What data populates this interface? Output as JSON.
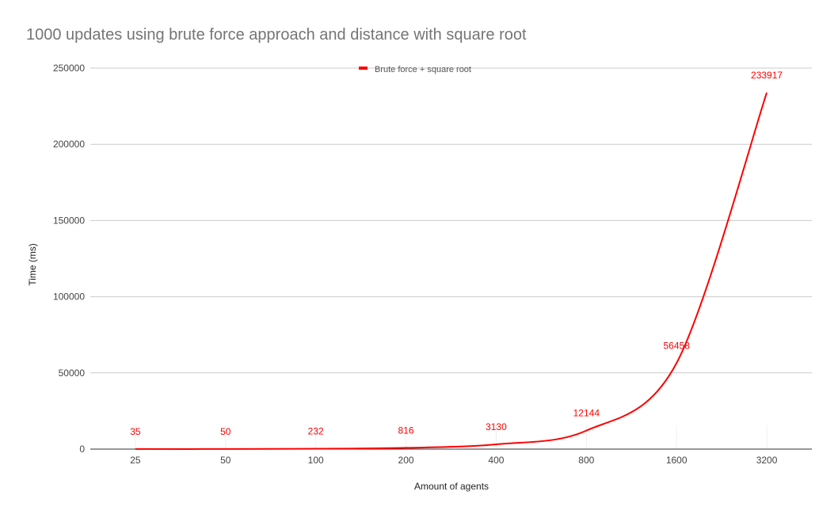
{
  "chart_data": {
    "type": "line",
    "title": "1000 updates using brute force approach and distance with square root",
    "xlabel": "Amount of agents",
    "ylabel": "Time (ms)",
    "categories": [
      "25",
      "50",
      "100",
      "200",
      "400",
      "800",
      "1600",
      "3200"
    ],
    "series": [
      {
        "name": "Brute force + square root",
        "values": [
          35,
          50,
          232,
          816,
          3130,
          12144,
          56458,
          233917
        ],
        "color": "#ff0000"
      }
    ],
    "ylim": [
      0,
      250000
    ],
    "yticks": [
      0,
      50000,
      100000,
      150000,
      200000,
      250000
    ],
    "grid": true,
    "legend": "top-center",
    "data_labels": true
  }
}
